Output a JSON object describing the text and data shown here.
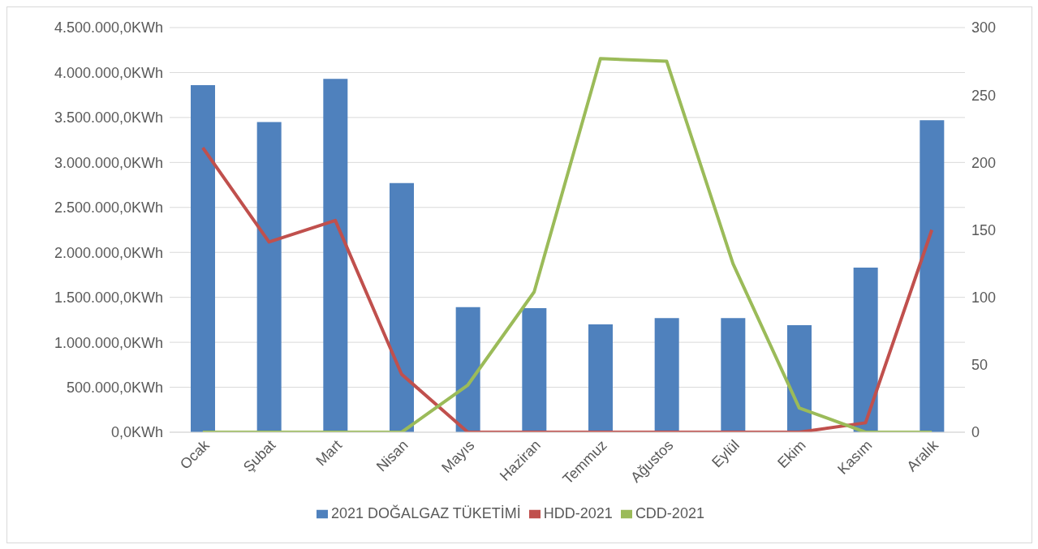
{
  "chart_data": {
    "type": "bar",
    "categories": [
      "Ocak",
      "Şubat",
      "Mart",
      "Nisan",
      "Mayıs",
      "Haziran",
      "Temmuz",
      "Ağustos",
      "Eylül",
      "Ekim",
      "Kasım",
      "Aralık"
    ],
    "series": [
      {
        "name": "2021 DOĞALGAZ TÜKETİMİ",
        "color": "#4f81bd",
        "values": [
          3860000,
          3450000,
          3930000,
          2770000,
          1390000,
          1380000,
          1200000,
          1270000,
          1270000,
          1190000,
          1830000,
          3470000
        ]
      },
      {
        "name": "HDD-2021",
        "type": "line",
        "axis": "y2",
        "color": "#c0504d",
        "values": [
          211,
          141,
          157,
          43,
          0,
          0,
          0,
          0,
          0,
          0,
          7,
          150
        ]
      },
      {
        "name": "CDD-2021",
        "type": "line",
        "axis": "y2",
        "color": "#9bbb59",
        "values": [
          0,
          0,
          0,
          0,
          35,
          104,
          277,
          275,
          125,
          18,
          0,
          0
        ]
      }
    ],
    "ylim": [
      0,
      4500000
    ],
    "yticks": [
      {
        "value": 0,
        "label": "0,0KWh"
      },
      {
        "value": 500000,
        "label": "500.000,0KWh"
      },
      {
        "value": 1000000,
        "label": "1.000.000,0KWh"
      },
      {
        "value": 1500000,
        "label": "1.500.000,0KWh"
      },
      {
        "value": 2000000,
        "label": "2.000.000,0KWh"
      },
      {
        "value": 2500000,
        "label": "2.500.000,0KWh"
      },
      {
        "value": 3000000,
        "label": "3.000.000,0KWh"
      },
      {
        "value": 3500000,
        "label": "3.500.000,0KWh"
      },
      {
        "value": 4000000,
        "label": "4.000.000,0KWh"
      },
      {
        "value": 4500000,
        "label": "4.500.000,0KWh"
      }
    ],
    "y2lim": [
      0,
      300
    ],
    "y2ticks": [
      0,
      50,
      100,
      150,
      200,
      250,
      300
    ],
    "grid": "y",
    "legend": "bottom",
    "marker": "none",
    "line_style": "solid"
  }
}
